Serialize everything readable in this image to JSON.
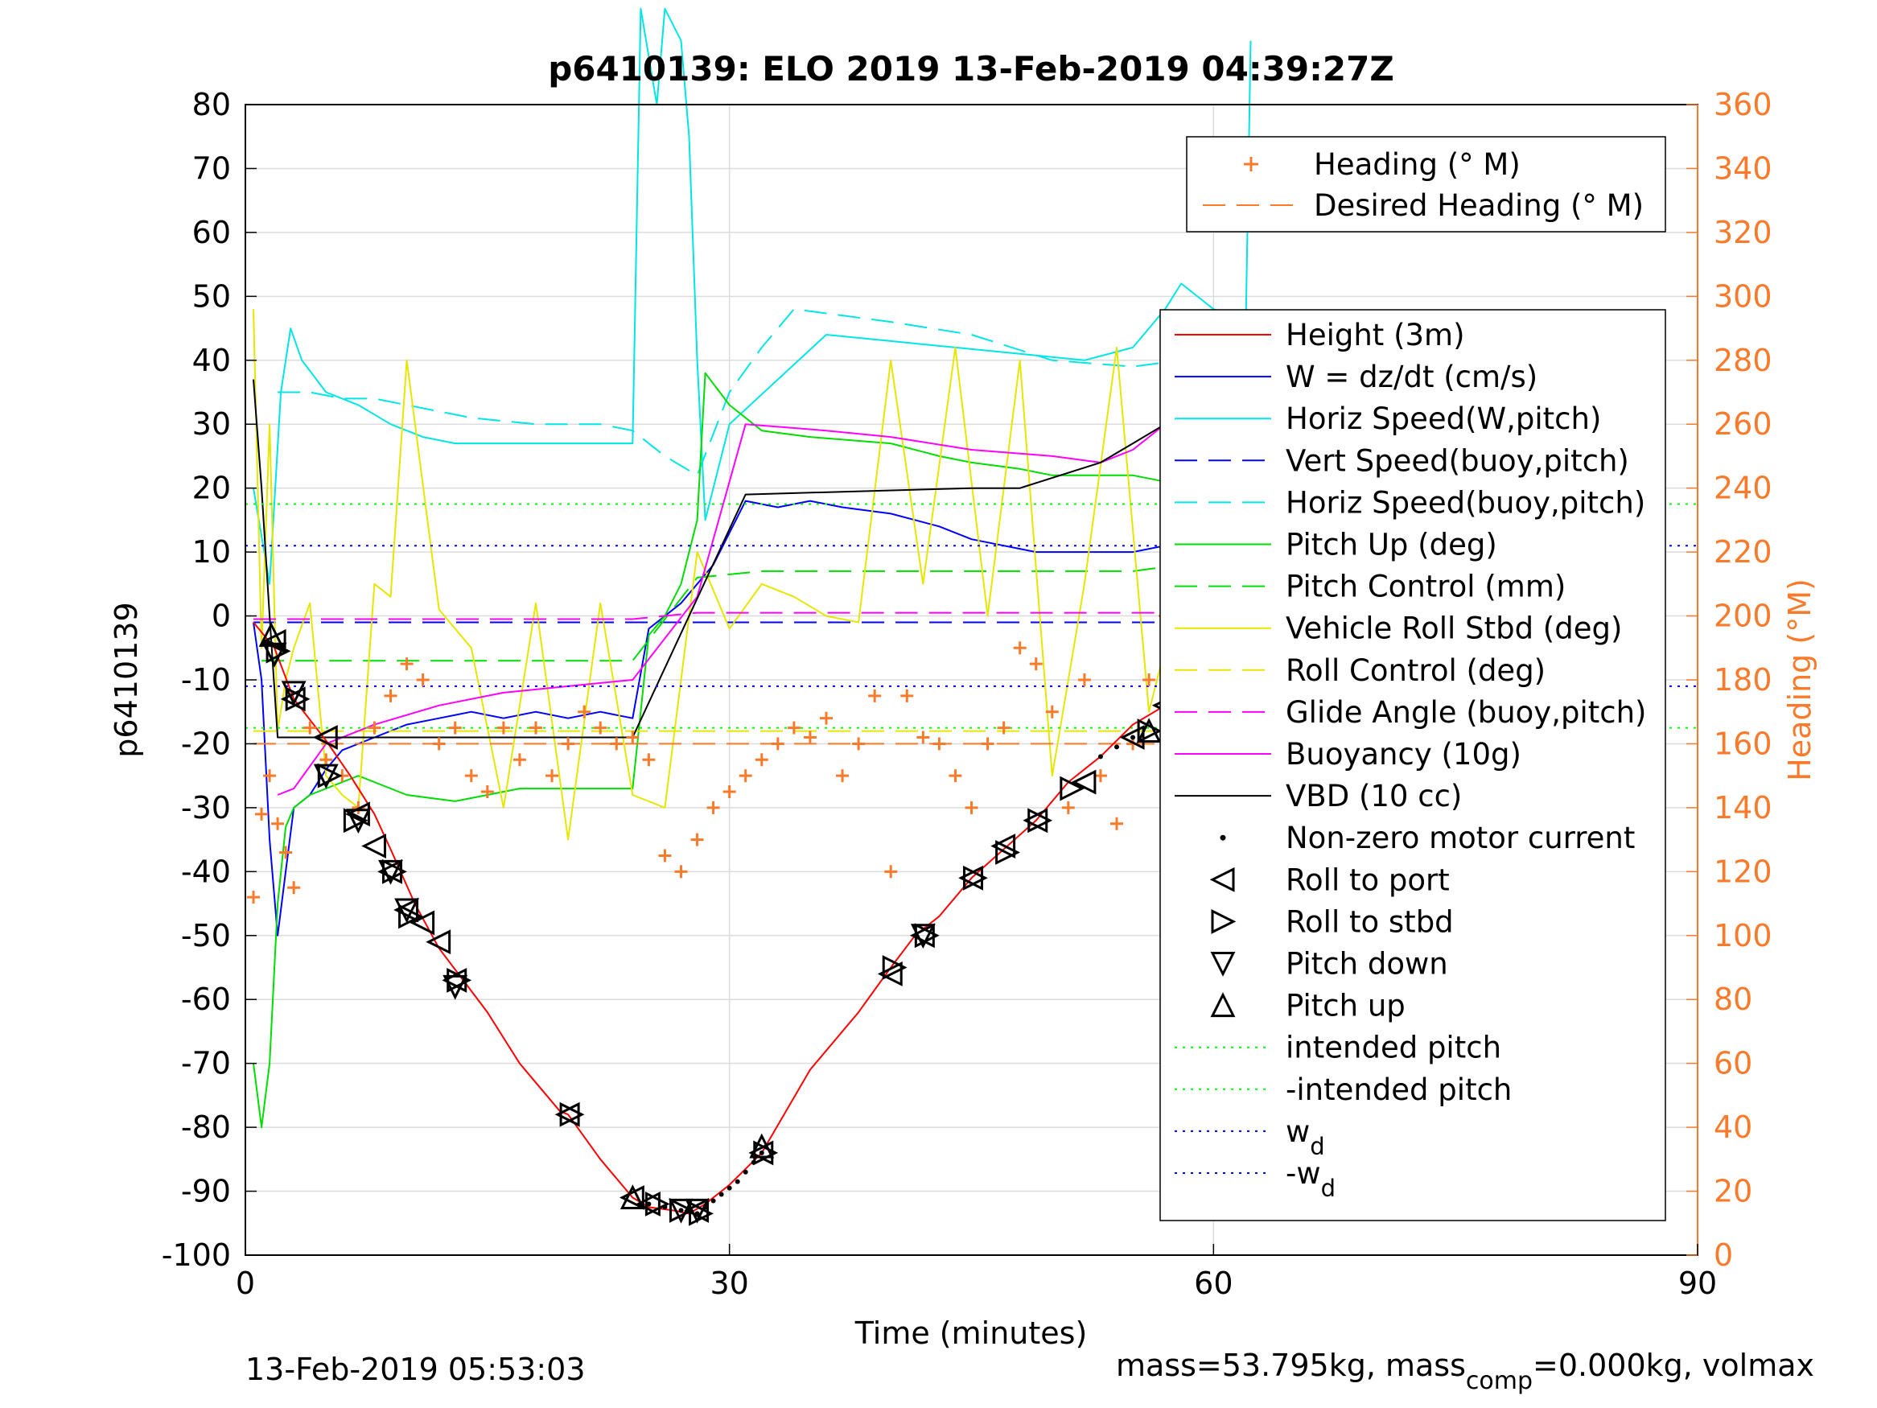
{
  "chart_data": {
    "type": "line",
    "title": "p6410139: ELO 2019 13-Feb-2019 04:39:27Z",
    "xlabel": "Time (minutes)",
    "ylabel": "p6410139",
    "ylabel_right": "Heading (°M)",
    "footer_left": "13-Feb-2019 05:53:03",
    "footer_right": {
      "a": "mass=53.795kg, mass",
      "sub": "comp",
      "b": "=0.000kg, volmax"
    },
    "xlim": [
      0,
      90
    ],
    "ylim": [
      -100,
      80
    ],
    "ylim_right": [
      0,
      360
    ],
    "x_ticks": [
      "0",
      "30",
      "60",
      "90"
    ],
    "y_ticks": [
      "80",
      "70",
      "60",
      "50",
      "40",
      "30",
      "20",
      "10",
      "0",
      "-10",
      "-20",
      "-30",
      "-40",
      "-50",
      "-60",
      "-70",
      "-80",
      "-90",
      "-100"
    ],
    "y_ticks_right": [
      "360",
      "340",
      "320",
      "300",
      "280",
      "260",
      "240",
      "220",
      "200",
      "180",
      "160",
      "140",
      "120",
      "100",
      "80",
      "60",
      "40",
      "20",
      "0"
    ],
    "grid": true,
    "colors": {
      "heading": "#f97a2a",
      "axis_right": "#f97a2a"
    },
    "legend_heading": [
      {
        "label": "Heading (° M)",
        "color": "#f97a2a",
        "marker": "+"
      },
      {
        "label": "Desired Heading (° M)",
        "color": "#f97a2a",
        "style": "dash"
      }
    ],
    "legend_main": [
      {
        "label": "Height (3m)",
        "color": "#ff0000",
        "style": "solid"
      },
      {
        "label": "W = dz/dt (cm/s)",
        "color": "#0000ff",
        "style": "solid"
      },
      {
        "label": "Horiz Speed(W,pitch)",
        "color": "#00e5e5",
        "style": "solid"
      },
      {
        "label": "Vert Speed(buoy,pitch)",
        "color": "#0000ff",
        "style": "dash"
      },
      {
        "label": "Horiz Speed(buoy,pitch)",
        "color": "#00e5e5",
        "style": "dash"
      },
      {
        "label": "Pitch Up (deg)",
        "color": "#00dd00",
        "style": "solid"
      },
      {
        "label": "Pitch Control (mm)",
        "color": "#00dd00",
        "style": "dash"
      },
      {
        "label": "Vehicle Roll Stbd (deg)",
        "color": "#e6e600",
        "style": "solid"
      },
      {
        "label": "Roll Control (deg)",
        "color": "#e6e600",
        "style": "dash"
      },
      {
        "label": "Glide Angle (buoy,pitch)",
        "color": "#ff00ff",
        "style": "dash"
      },
      {
        "label": "Buoyancy (10g)",
        "color": "#ff00ff",
        "style": "solid"
      },
      {
        "label": "VBD (10 cc)",
        "color": "#000000",
        "style": "solid"
      },
      {
        "label": "Non-zero motor current",
        "color": "#000000",
        "marker": "dot"
      },
      {
        "label": "Roll to port",
        "color": "#000000",
        "marker": "tri-left"
      },
      {
        "label": "Roll to stbd",
        "color": "#000000",
        "marker": "tri-right"
      },
      {
        "label": "Pitch down",
        "color": "#000000",
        "marker": "tri-down"
      },
      {
        "label": "Pitch up",
        "color": "#000000",
        "marker": "tri-up"
      },
      {
        "label": "intended pitch",
        "color": "#00ff00",
        "style": "dot"
      },
      {
        "label": "-intended pitch",
        "color": "#00ff00",
        "style": "dot"
      },
      {
        "label": "w",
        "sub": "d",
        "color": "#0000ff",
        "style": "dot"
      },
      {
        "label": "-w",
        "sub": "d",
        "color": "#0000ff",
        "style": "dot"
      }
    ],
    "series": [
      {
        "name": "Height (3m)",
        "color": "#ff0000",
        "style": "solid",
        "x": [
          0.5,
          1.8,
          3,
          5,
          6.5,
          8,
          9,
          10.5,
          12,
          13.5,
          15,
          17,
          19.5,
          20,
          22,
          24,
          25,
          26.5,
          27.5,
          28.5,
          30,
          32,
          35,
          38,
          40,
          41.5,
          43,
          45,
          47,
          49,
          51,
          53,
          55,
          57,
          59,
          61,
          62.5
        ],
        "y": [
          -1,
          -5,
          -13,
          -19.5,
          -25,
          -31,
          -36.5,
          -45,
          -52,
          -57,
          -62,
          -70,
          -77.5,
          -78,
          -85,
          -91,
          -92.5,
          -93,
          -93.5,
          -92,
          -89,
          -84,
          -71,
          -62,
          -55,
          -50,
          -47,
          -41,
          -36.5,
          -32,
          -26,
          -22,
          -17,
          -14,
          -8,
          -4,
          -1
        ]
      },
      {
        "name": "W = dz/dt (cm/s)",
        "color": "#0000ff",
        "style": "solid",
        "x": [
          0.5,
          1,
          1.5,
          2,
          2.5,
          3,
          4,
          5,
          6,
          8,
          10,
          12,
          14,
          16,
          18,
          20,
          22,
          24,
          25,
          27,
          29,
          31,
          33,
          35,
          37,
          40,
          43,
          45,
          47,
          49,
          52,
          55,
          57,
          58,
          60,
          61,
          62,
          62.5
        ],
        "y": [
          -1,
          -10,
          -35,
          -50,
          -40,
          -30,
          -28,
          -24,
          -21,
          -19,
          -17,
          -16,
          -15,
          -16,
          -15,
          -16,
          -15,
          -16,
          -2,
          2,
          8,
          18,
          17,
          18,
          17,
          16,
          14,
          12,
          11,
          10,
          10,
          10,
          11,
          14,
          17,
          15,
          9,
          17
        ]
      },
      {
        "name": "Horiz Speed(W,pitch)",
        "color": "#00e5e5",
        "style": "solid",
        "x": [
          0.5,
          1.5,
          2.2,
          2.8,
          3.5,
          5,
          7,
          9,
          11,
          13,
          15,
          17,
          19,
          22,
          24,
          24.5,
          25.5,
          26,
          27,
          27.5,
          28,
          28.5,
          29,
          30,
          36,
          40,
          44,
          48,
          52,
          55,
          57,
          58,
          60,
          61,
          62,
          62.3
        ],
        "y": [
          20,
          5,
          35,
          45,
          40,
          35,
          33,
          30,
          28,
          27,
          27,
          27,
          27,
          27,
          27,
          95,
          80,
          95,
          90,
          75,
          40,
          15,
          20,
          30,
          44,
          43,
          42,
          41,
          40,
          42,
          48,
          52,
          48,
          47,
          45,
          90
        ]
      },
      {
        "name": "Vert Speed(buoy,pitch)",
        "color": "#0000ff",
        "style": "dash",
        "x": [
          0.5,
          62.5
        ],
        "y": [
          -1,
          -1
        ]
      },
      {
        "name": "Horiz Speed(buoy,pitch)",
        "color": "#00e5e5",
        "style": "dash",
        "x": [
          2,
          4,
          6,
          8,
          10,
          12,
          14,
          18,
          22,
          24,
          26,
          28,
          30,
          32,
          34,
          40,
          45,
          50,
          55,
          58,
          60,
          62
        ],
        "y": [
          35,
          35,
          34,
          34,
          33,
          32,
          31,
          30,
          30,
          29,
          25,
          22,
          35,
          42,
          48,
          46,
          44,
          40,
          39,
          40,
          45,
          48
        ]
      },
      {
        "name": "Pitch Up (deg)",
        "color": "#00dd00",
        "style": "solid",
        "x": [
          0.5,
          1,
          1.5,
          2,
          2.5,
          3,
          4,
          5,
          7,
          10,
          13,
          15,
          17,
          20,
          23,
          24,
          25,
          26,
          27,
          28,
          28.5,
          30,
          32,
          35,
          40,
          43,
          45,
          48,
          50,
          53,
          55,
          57,
          58,
          60,
          61,
          62,
          62.5
        ],
        "y": [
          -70,
          -80,
          -70,
          -45,
          -33,
          -30,
          -28,
          -27,
          -25,
          -28,
          -29,
          -28,
          -27,
          -27,
          -27,
          -27,
          -3,
          0,
          5,
          15,
          38,
          33,
          29,
          28,
          27,
          25,
          24,
          23,
          22,
          22,
          22,
          21,
          25,
          20,
          15,
          10,
          15
        ]
      },
      {
        "name": "Pitch Control (mm)",
        "color": "#00dd00",
        "style": "dash",
        "x": [
          1,
          24,
          28,
          32,
          40,
          55,
          58,
          62
        ],
        "y": [
          -7,
          -7,
          6,
          7,
          7,
          7,
          8,
          8
        ]
      },
      {
        "name": "Vehicle Roll Stbd (deg)",
        "color": "#e6e600",
        "style": "solid",
        "x": [
          0.5,
          1,
          1.5,
          2,
          2.5,
          3,
          4,
          5,
          6,
          7,
          8,
          9,
          10,
          12,
          14,
          16,
          18,
          20,
          22,
          24,
          26,
          28,
          30,
          32,
          34,
          36,
          38,
          40,
          42,
          44,
          46,
          48,
          50,
          52,
          54,
          56,
          58,
          60,
          62
        ],
        "y": [
          48,
          -5,
          30,
          -18,
          -10,
          -5,
          2,
          -25,
          -28,
          -30,
          5,
          3,
          40,
          1,
          -5,
          -30,
          2,
          -35,
          2,
          -28,
          -30,
          10,
          -2,
          5,
          3,
          0,
          -1,
          40,
          5,
          42,
          0,
          40,
          -25,
          5,
          42,
          -15,
          5,
          25,
          -40
        ]
      },
      {
        "name": "Roll Control (deg)",
        "color": "#e6e600",
        "style": "dash",
        "x": [
          0.5,
          62.5
        ],
        "y": [
          -18,
          -18
        ]
      },
      {
        "name": "Glide Angle (buoy,pitch)",
        "color": "#ff00ff",
        "style": "dash",
        "x": [
          0.5,
          24,
          28,
          62.5
        ],
        "y": [
          -0.5,
          -0.5,
          0.5,
          0.5
        ]
      },
      {
        "name": "Buoyancy (10g)",
        "color": "#ff00ff",
        "style": "solid",
        "x": [
          2,
          3,
          5,
          8,
          12,
          16,
          20,
          24,
          28,
          31,
          36,
          40,
          45,
          50,
          53,
          55,
          57,
          59,
          61,
          62.5
        ],
        "y": [
          -28,
          -27,
          -20,
          -17,
          -14,
          -12,
          -11,
          -10,
          3,
          30,
          29,
          28,
          26,
          25,
          24,
          26,
          30,
          31,
          32,
          33
        ]
      },
      {
        "name": "VBD (10 cc)",
        "color": "#000000",
        "style": "solid",
        "x": [
          0.5,
          1,
          1.5,
          2,
          24,
          31,
          45,
          48,
          53,
          55,
          57,
          59,
          61,
          62.5
        ],
        "y": [
          37,
          20,
          0,
          -19,
          -19,
          19,
          20,
          20,
          24,
          27,
          30,
          35,
          40,
          46
        ]
      },
      {
        "name": "intended pitch",
        "color": "#00ff00",
        "style": "dot",
        "x": [
          0,
          90
        ],
        "y": [
          17.5,
          17.5
        ]
      },
      {
        "name": "-intended pitch",
        "color": "#00ff00",
        "style": "dot",
        "x": [
          0,
          90
        ],
        "y": [
          -17.5,
          -17.5
        ]
      },
      {
        "name": "w_d",
        "color": "#0000ff",
        "style": "dot",
        "x": [
          0,
          90
        ],
        "y": [
          11,
          11
        ]
      },
      {
        "name": "-w_d",
        "color": "#0000ff",
        "style": "dot",
        "x": [
          0,
          90
        ],
        "y": [
          -11,
          -11
        ]
      },
      {
        "name": "Desired Heading (° M)",
        "color": "#f97a2a",
        "style": "dash",
        "axis": "right",
        "x": [
          0.5,
          62.5
        ],
        "y": [
          160,
          160
        ]
      }
    ],
    "heading_points": {
      "x": [
        0.5,
        1,
        1.5,
        2,
        2.5,
        3,
        4,
        5,
        6,
        7,
        8,
        9,
        10,
        11,
        12,
        13,
        14,
        15,
        16,
        17,
        18,
        19,
        20,
        21,
        22,
        23,
        24,
        25,
        26,
        27,
        28,
        29,
        30,
        31,
        32,
        33,
        34,
        35,
        36,
        37,
        38,
        39,
        40,
        41,
        42,
        43,
        44,
        45,
        46,
        47,
        48,
        49,
        50,
        51,
        52,
        53,
        54,
        55,
        56,
        57,
        58,
        59,
        60,
        61,
        62
      ],
      "y": [
        112,
        138,
        150,
        135,
        126,
        115,
        165,
        155,
        150,
        140,
        165,
        175,
        185,
        180,
        160,
        165,
        150,
        145,
        165,
        155,
        165,
        150,
        160,
        170,
        165,
        160,
        162,
        155,
        125,
        120,
        130,
        140,
        145,
        150,
        155,
        160,
        165,
        162,
        168,
        150,
        160,
        175,
        120,
        175,
        162,
        160,
        150,
        140,
        160,
        165,
        190,
        185,
        170,
        140,
        180,
        150,
        135,
        160,
        180,
        200,
        130,
        150,
        175,
        180,
        190
      ]
    },
    "markers": {
      "motor_current": {
        "x": [
          25,
          26,
          27,
          28,
          28.5,
          29,
          29.5,
          30,
          30.5,
          31,
          31.5,
          32,
          53,
          54,
          55
        ],
        "y": [
          -92,
          -92.5,
          -93,
          -93.5,
          -92.5,
          -91.5,
          -90.5,
          -89.5,
          -88.5,
          -87,
          -85.5,
          -84,
          -22,
          -20.5,
          -19
        ]
      },
      "roll_to_port": {
        "x": [
          1.8,
          3,
          5,
          7,
          8,
          9,
          10,
          11,
          12,
          13,
          20,
          24,
          25,
          28,
          32,
          40,
          42,
          45,
          47,
          49,
          52,
          55,
          57,
          60,
          62.5
        ],
        "y": [
          -4,
          -13,
          -19,
          -31,
          -36,
          -40,
          -46,
          -48,
          -51,
          -57,
          -78,
          -91,
          -92,
          -93,
          -84,
          -56,
          -50,
          -41,
          -36,
          -32,
          -26,
          -19,
          -14,
          -7,
          -1
        ]
      },
      "roll_to_stbd": {
        "x": [
          2,
          3.2,
          5.2,
          6.8,
          9.2,
          10.2,
          13.2,
          20.2,
          25.5,
          27,
          28.2,
          32.2,
          40.2,
          42.2,
          45.2,
          47.2,
          49.2,
          51.2,
          56,
          60
        ],
        "y": [
          -5.5,
          -13,
          -25,
          -32,
          -40,
          -47,
          -57,
          -78,
          -92,
          -93,
          -93.5,
          -84,
          -55,
          -50,
          -41,
          -37,
          -32,
          -27,
          -18,
          -8
        ]
      },
      "pitch_down": {
        "x": [
          1.8,
          3,
          5,
          7,
          9,
          10,
          13,
          27,
          28,
          42,
          59.5,
          62.5
        ],
        "y": [
          -6,
          -12,
          -25,
          -32,
          -40,
          -46,
          -58,
          -93,
          -93,
          -50,
          -7,
          -1
        ]
      },
      "pitch_up": {
        "x": [
          1.6,
          24,
          32,
          56,
          62.5
        ],
        "y": [
          -3,
          -91,
          -83,
          -18,
          -2
        ]
      }
    }
  }
}
